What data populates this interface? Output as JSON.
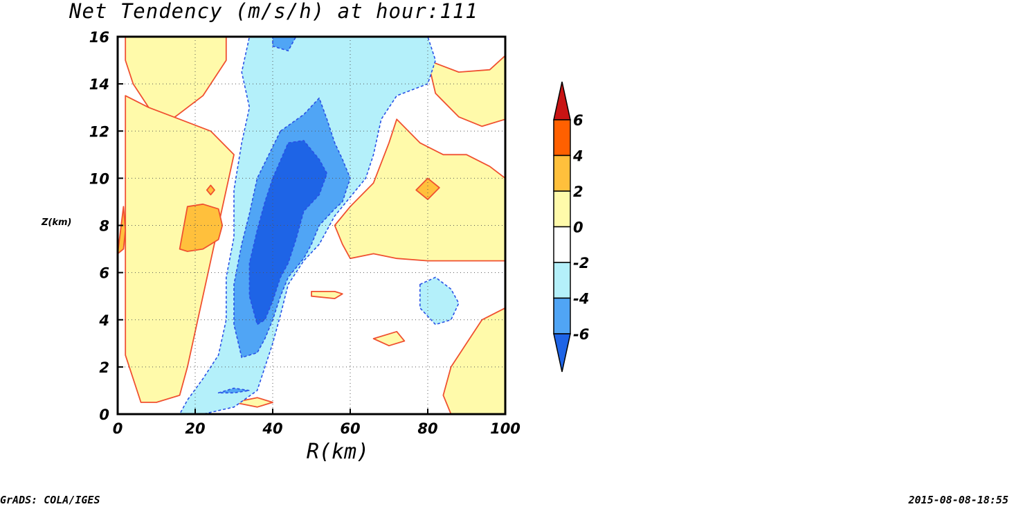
{
  "chart_data": {
    "type": "contour",
    "title": "Net Tendency (m/s/h) at hour:111",
    "xlabel": "R(km)",
    "ylabel": "Z(km)",
    "xlim": [
      0,
      100
    ],
    "ylim": [
      0,
      16
    ],
    "x_ticks": [
      "0",
      "20",
      "40",
      "60",
      "80",
      "100"
    ],
    "y_ticks": [
      "0",
      "2",
      "4",
      "6",
      "8",
      "10",
      "12",
      "14",
      "16"
    ],
    "grid": true,
    "legend_position": "right",
    "colorbar": {
      "levels": [
        "-6",
        "-4",
        "-2",
        "0",
        "2",
        "4",
        "6"
      ],
      "level_values": [
        -6,
        -4,
        -2,
        0,
        2,
        4,
        6
      ],
      "colors": [
        "#1e64e6",
        "#50a5f5",
        "#b4f0fa",
        "#ffffff",
        "#fffaaa",
        "#ffc03c",
        "#ff6000",
        "#c81414"
      ]
    },
    "regions": [
      {
        "level": "0 to 2",
        "color": "#fffaaa",
        "points": [
          [
            2,
            16
          ],
          [
            28,
            16
          ],
          [
            28,
            15
          ],
          [
            22,
            13.5
          ],
          [
            14,
            12.5
          ],
          [
            8,
            13
          ],
          [
            4,
            14
          ],
          [
            2,
            15
          ]
        ]
      },
      {
        "level": "0 to 2",
        "color": "#fffaaa",
        "points": [
          [
            2,
            13.5
          ],
          [
            8,
            13
          ],
          [
            16,
            12.5
          ],
          [
            24,
            12
          ],
          [
            30,
            11
          ],
          [
            28,
            9.5
          ],
          [
            26,
            8
          ],
          [
            24,
            6.5
          ],
          [
            22,
            5
          ],
          [
            20,
            3.5
          ],
          [
            18,
            2
          ],
          [
            16,
            0.8
          ],
          [
            10,
            0.5
          ],
          [
            6,
            0.5
          ],
          [
            4,
            1.5
          ],
          [
            2,
            2.5
          ]
        ]
      },
      {
        "level": "0 to 2",
        "color": "#fffaaa",
        "points": [
          [
            72,
            12.5
          ],
          [
            78,
            11.5
          ],
          [
            84,
            11
          ],
          [
            90,
            11
          ],
          [
            96,
            10.5
          ],
          [
            100,
            10
          ],
          [
            100,
            6.5
          ],
          [
            96,
            6.5
          ],
          [
            90,
            6.5
          ],
          [
            80,
            6.5
          ],
          [
            72,
            6.6
          ],
          [
            66,
            6.8
          ],
          [
            60,
            6.6
          ],
          [
            58,
            7.2
          ],
          [
            56,
            8
          ],
          [
            60,
            8.8
          ],
          [
            66,
            9.8
          ],
          [
            70,
            11.5
          ]
        ]
      },
      {
        "level": "0 to 2",
        "color": "#fffaaa",
        "points": [
          [
            80,
            15
          ],
          [
            88,
            14.5
          ],
          [
            96,
            14.6
          ],
          [
            100,
            15.2
          ],
          [
            100,
            12.5
          ],
          [
            94,
            12.2
          ],
          [
            88,
            12.6
          ],
          [
            82,
            13.6
          ]
        ]
      },
      {
        "level": "0 to 2",
        "color": "#fffaaa",
        "points": [
          [
            100,
            4.5
          ],
          [
            94,
            4
          ],
          [
            90,
            3
          ],
          [
            86,
            2
          ],
          [
            84,
            0.8
          ],
          [
            86,
            0
          ],
          [
            100,
            0
          ]
        ]
      },
      {
        "level": "0 to 2",
        "color": "#fffaaa",
        "points": [
          [
            50,
            5
          ],
          [
            56,
            4.9
          ],
          [
            58,
            5.1
          ],
          [
            56,
            5.2
          ],
          [
            50,
            5.2
          ]
        ]
      },
      {
        "level": "0 to 2",
        "color": "#fffaaa",
        "points": [
          [
            66,
            3.2
          ],
          [
            72,
            3.5
          ],
          [
            74,
            3.1
          ],
          [
            70,
            2.9
          ]
        ]
      },
      {
        "level": "0 to 2",
        "color": "#fffaaa",
        "points": [
          [
            30,
            0.5
          ],
          [
            36,
            0.7
          ],
          [
            40,
            0.5
          ],
          [
            36,
            0.3
          ]
        ]
      },
      {
        "level": "-4 to -2",
        "color": "#b4f0fa",
        "points": [
          [
            34,
            16
          ],
          [
            80,
            16
          ],
          [
            82,
            15
          ],
          [
            80,
            14
          ],
          [
            72,
            13.5
          ],
          [
            68,
            12.5
          ],
          [
            66,
            11
          ],
          [
            64,
            10
          ],
          [
            60,
            9.2
          ],
          [
            56,
            8.4
          ],
          [
            54,
            7.8
          ],
          [
            52,
            7.2
          ],
          [
            48,
            6.5
          ],
          [
            44,
            5.5
          ],
          [
            42,
            4.2
          ],
          [
            40,
            3
          ],
          [
            38,
            2
          ],
          [
            36,
            1
          ],
          [
            30,
            0.3
          ],
          [
            22,
            0
          ],
          [
            16,
            0
          ],
          [
            18,
            0.6
          ],
          [
            22,
            1.5
          ],
          [
            26,
            2.5
          ],
          [
            28,
            4
          ],
          [
            28,
            5.8
          ],
          [
            30,
            7.5
          ],
          [
            30,
            9.5
          ],
          [
            32,
            11.5
          ],
          [
            34,
            13
          ],
          [
            32,
            14.5
          ]
        ]
      },
      {
        "level": "-4 to -2",
        "color": "#b4f0fa",
        "points": [
          [
            78,
            5.5
          ],
          [
            82,
            5.8
          ],
          [
            86,
            5.3
          ],
          [
            88,
            4.7
          ],
          [
            86,
            4
          ],
          [
            82,
            3.8
          ],
          [
            78,
            4.5
          ]
        ]
      },
      {
        "level": "-6 to -4",
        "color": "#50a5f5",
        "points": [
          [
            40,
            16
          ],
          [
            46,
            16
          ],
          [
            44,
            15.4
          ],
          [
            40,
            15.6
          ]
        ]
      },
      {
        "level": "-6 to -4",
        "color": "#50a5f5",
        "points": [
          [
            42,
            12
          ],
          [
            48,
            12.7
          ],
          [
            52,
            13.4
          ],
          [
            54,
            12.5
          ],
          [
            56,
            11.5
          ],
          [
            58,
            10.8
          ],
          [
            60,
            10
          ],
          [
            58,
            9
          ],
          [
            56,
            8.7
          ],
          [
            52,
            8
          ],
          [
            50,
            7.2
          ],
          [
            48,
            6.6
          ],
          [
            44,
            5.8
          ],
          [
            42,
            5
          ],
          [
            40,
            4
          ],
          [
            38,
            3.2
          ],
          [
            36,
            2.6
          ],
          [
            32,
            2.4
          ],
          [
            30,
            3.8
          ],
          [
            30,
            5.5
          ],
          [
            32,
            7.2
          ],
          [
            34,
            8.5
          ],
          [
            36,
            10
          ]
        ]
      },
      {
        "level": "-6 to -4",
        "color": "#50a5f5",
        "points": [
          [
            26,
            0.9
          ],
          [
            30,
            1.1
          ],
          [
            34,
            1
          ],
          [
            30,
            0.9
          ]
        ]
      },
      {
        "level": "< -6",
        "color": "#1e64e6",
        "points": [
          [
            40,
            10
          ],
          [
            44,
            11.5
          ],
          [
            48,
            11.6
          ],
          [
            52,
            10.8
          ],
          [
            54,
            10.2
          ],
          [
            52,
            9.3
          ],
          [
            48,
            8.6
          ],
          [
            46,
            7.4
          ],
          [
            44,
            6.4
          ],
          [
            42,
            5.8
          ],
          [
            40,
            4.8
          ],
          [
            38,
            4
          ],
          [
            36,
            3.8
          ],
          [
            34,
            5
          ],
          [
            34,
            6.4
          ],
          [
            36,
            7.8
          ],
          [
            38,
            9
          ]
        ]
      },
      {
        "level": "2 to 4",
        "color": "#ffc03c",
        "points": [
          [
            16,
            7
          ],
          [
            18,
            8.8
          ],
          [
            22,
            8.9
          ],
          [
            26,
            8.7
          ],
          [
            27,
            8
          ],
          [
            26,
            7.4
          ],
          [
            22,
            7
          ],
          [
            18,
            6.9
          ]
        ]
      },
      {
        "level": "2 to 4",
        "color": "#ffc03c",
        "points": [
          [
            23,
            9.5
          ],
          [
            24,
            9.7
          ],
          [
            25,
            9.5
          ],
          [
            24,
            9.3
          ]
        ]
      },
      {
        "level": "2 to 4",
        "color": "#ffc03c",
        "points": [
          [
            77,
            9.5
          ],
          [
            80,
            10
          ],
          [
            83,
            9.6
          ],
          [
            80,
            9.1
          ]
        ]
      },
      {
        "level": "2 to 4",
        "color": "#ffc03c",
        "points": [
          [
            0,
            6.8
          ],
          [
            1.5,
            8.8
          ],
          [
            2,
            7.8
          ],
          [
            1.5,
            7
          ]
        ]
      }
    ]
  },
  "footer": {
    "left": "GrADS: COLA/IGES",
    "right": "2015-08-08-18:55"
  }
}
